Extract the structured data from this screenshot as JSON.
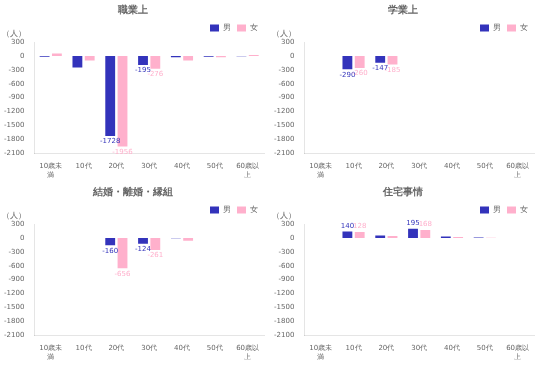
{
  "chart_data": [
    {
      "type": "bar",
      "title": "職業上",
      "categories": [
        "10歳未\n満",
        "10代",
        "20代",
        "30代",
        "40代",
        "50代",
        "60歳以\n上"
      ],
      "series": [
        {
          "name": "男",
          "color": "#3333BB",
          "values": [
            -20,
            -250,
            -1728,
            -195,
            -30,
            -20,
            -10
          ],
          "value_labels": [
            null,
            null,
            "-1728",
            "-195",
            null,
            null,
            null
          ]
        },
        {
          "name": "女",
          "color": "#FFB0CC",
          "values": [
            50,
            -100,
            -1956,
            -276,
            -100,
            -30,
            20
          ],
          "value_labels": [
            null,
            null,
            "-1956",
            "-276",
            null,
            null,
            null
          ]
        }
      ],
      "ylabel": "（人）",
      "ylim": [
        -2100,
        300
      ],
      "yticks": [
        300,
        0,
        -300,
        -600,
        -900,
        -1200,
        -1500,
        -1800,
        -2100
      ],
      "grid": false,
      "legend": "upper right"
    },
    {
      "type": "bar",
      "title": "学業上",
      "categories": [
        "10歳未\n満",
        "10代",
        "20代",
        "30代",
        "40代",
        "50代",
        "60歳以\n上"
      ],
      "series": [
        {
          "name": "男",
          "color": "#3333BB",
          "values": [
            0,
            -290,
            -147,
            0,
            0,
            0,
            0
          ],
          "value_labels": [
            null,
            "-290",
            "-147",
            null,
            null,
            null,
            null
          ]
        },
        {
          "name": "女",
          "color": "#FFB0CC",
          "values": [
            0,
            -260,
            -185,
            0,
            0,
            0,
            0
          ],
          "value_labels": [
            null,
            "-260",
            "-185",
            null,
            null,
            null,
            null
          ]
        }
      ],
      "ylabel": "（人）",
      "ylim": [
        -2100,
        300
      ],
      "yticks": [
        300,
        0,
        -300,
        -600,
        -900,
        -1200,
        -1500,
        -1800,
        -2100
      ],
      "grid": false,
      "legend": "upper right"
    },
    {
      "type": "bar",
      "title": "結婚・離婚・縁組",
      "categories": [
        "10歳未\n満",
        "10代",
        "20代",
        "30代",
        "40代",
        "50代",
        "60歳以\n上"
      ],
      "series": [
        {
          "name": "男",
          "color": "#3333BB",
          "values": [
            0,
            0,
            -160,
            -124,
            -10,
            0,
            0
          ],
          "value_labels": [
            null,
            null,
            "-160",
            "-124",
            null,
            null,
            null
          ]
        },
        {
          "name": "女",
          "color": "#FFB0CC",
          "values": [
            0,
            0,
            -656,
            -261,
            -60,
            0,
            0
          ],
          "value_labels": [
            null,
            null,
            "-656",
            "-261",
            null,
            null,
            null
          ]
        }
      ],
      "ylabel": "（人）",
      "ylim": [
        -2100,
        300
      ],
      "yticks": [
        300,
        0,
        -300,
        -600,
        -900,
        -1200,
        -1500,
        -1800,
        -2100
      ],
      "grid": false,
      "legend": "upper right"
    },
    {
      "type": "bar",
      "title": "住宅事情",
      "categories": [
        "10歳未\n満",
        "10代",
        "20代",
        "30代",
        "40代",
        "50代",
        "60歳以\n上"
      ],
      "series": [
        {
          "name": "男",
          "color": "#3333BB",
          "values": [
            0,
            140,
            50,
            195,
            30,
            10,
            0
          ],
          "value_labels": [
            null,
            "140",
            null,
            "195",
            null,
            null,
            null
          ]
        },
        {
          "name": "女",
          "color": "#FFB0CC",
          "values": [
            0,
            128,
            40,
            168,
            20,
            5,
            0
          ],
          "value_labels": [
            null,
            "128",
            null,
            "168",
            null,
            null,
            null
          ]
        }
      ],
      "ylabel": "（人）",
      "ylim": [
        -2100,
        300
      ],
      "yticks": [
        300,
        0,
        -300,
        -600,
        -900,
        -1200,
        -1500,
        -1800,
        -2100
      ],
      "grid": false,
      "legend": "upper right"
    }
  ]
}
